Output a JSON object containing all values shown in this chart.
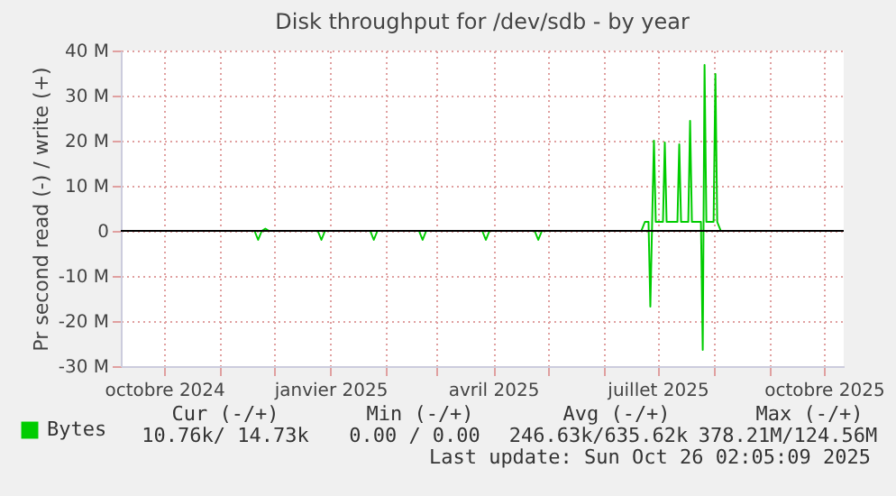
{
  "chart_data": {
    "type": "line",
    "title": "Disk throughput for /dev/sdb - by year",
    "ylabel": "Pr second read (-) / write (+)",
    "x": [
      "2024-11-20",
      "2024-11-22",
      "2024-11-24",
      "2024-11-26",
      "2024-11-28",
      "2024-12-25",
      "2024-12-27",
      "2024-12-29",
      "2025-01-23",
      "2025-01-25",
      "2025-01-27",
      "2025-02-19",
      "2025-02-21",
      "2025-02-23",
      "2025-03-26",
      "2025-03-28",
      "2025-03-30",
      "2025-04-24",
      "2025-04-26",
      "2025-04-28",
      "2025-06-22",
      "2025-06-24",
      "2025-06-26",
      "2025-06-27",
      "2025-06-28",
      "2025-06-29",
      "2025-06-30",
      "2025-07-04",
      "2025-07-05",
      "2025-07-06",
      "2025-07-12",
      "2025-07-13",
      "2025-07-14",
      "2025-07-18",
      "2025-07-19",
      "2025-07-20",
      "2025-07-25",
      "2025-07-26",
      "2025-07-27",
      "2025-07-28",
      "2025-08-01",
      "2025-08-02",
      "2025-08-03",
      "2025-08-05"
    ],
    "series": [
      {
        "name": "Bytes",
        "color": "#00cc00",
        "values": [
          0,
          -2,
          0,
          0.5,
          0,
          0,
          -2,
          0,
          0,
          -2,
          0,
          0,
          -2,
          0,
          0,
          -2,
          0,
          0,
          -2,
          0,
          0,
          2,
          2,
          -16.8,
          2,
          20,
          2,
          2,
          19.6,
          2,
          2,
          19.2,
          2,
          2,
          24.4,
          2,
          2,
          -26.4,
          36.8,
          2,
          2,
          34.8,
          2,
          0
        ]
      }
    ],
    "xlim": [
      "2024-09-07",
      "2025-10-12"
    ],
    "xticks": [
      {
        "value": "2024-10-01",
        "label": "octobre 2024"
      },
      {
        "value": "2024-11-01",
        "label": null
      },
      {
        "value": "2024-12-01",
        "label": null
      },
      {
        "value": "2025-01-01",
        "label": "janvier 2025"
      },
      {
        "value": "2025-02-01",
        "label": null
      },
      {
        "value": "2025-03-01",
        "label": null
      },
      {
        "value": "2025-04-01",
        "label": "avril 2025"
      },
      {
        "value": "2025-05-01",
        "label": null
      },
      {
        "value": "2025-06-01",
        "label": null
      },
      {
        "value": "2025-07-01",
        "label": "juillet 2025"
      },
      {
        "value": "2025-08-01",
        "label": null
      },
      {
        "value": "2025-09-01",
        "label": null
      },
      {
        "value": "2025-10-01",
        "label": "octobre 2025"
      }
    ],
    "ylim": [
      -30,
      40
    ],
    "yticks": [
      {
        "value": -30,
        "label": "-30 M"
      },
      {
        "value": -20,
        "label": "-20 M"
      },
      {
        "value": -10,
        "label": "-10 M"
      },
      0,
      {
        "value": 10,
        "label": "10 M"
      },
      {
        "value": 20,
        "label": "20 M"
      },
      {
        "value": 30,
        "label": "30 M"
      },
      {
        "value": 40,
        "label": "40 M"
      }
    ],
    "ref_lines": [
      {
        "axis": "y",
        "value": 0,
        "label": null,
        "color": "#000000"
      }
    ],
    "grid": true,
    "legend": "bottom",
    "annotations": [
      "Cur (-/+)",
      "Min (-/+)",
      "Avg (-/+)",
      "Max (-/+)",
      "10.76k/ 14.73k",
      "0.00 /  0.00",
      "246.63k/635.62k",
      "378.21M/124.56M",
      "Last update: Sun Oct 26 02:05:09 2025"
    ]
  }
}
